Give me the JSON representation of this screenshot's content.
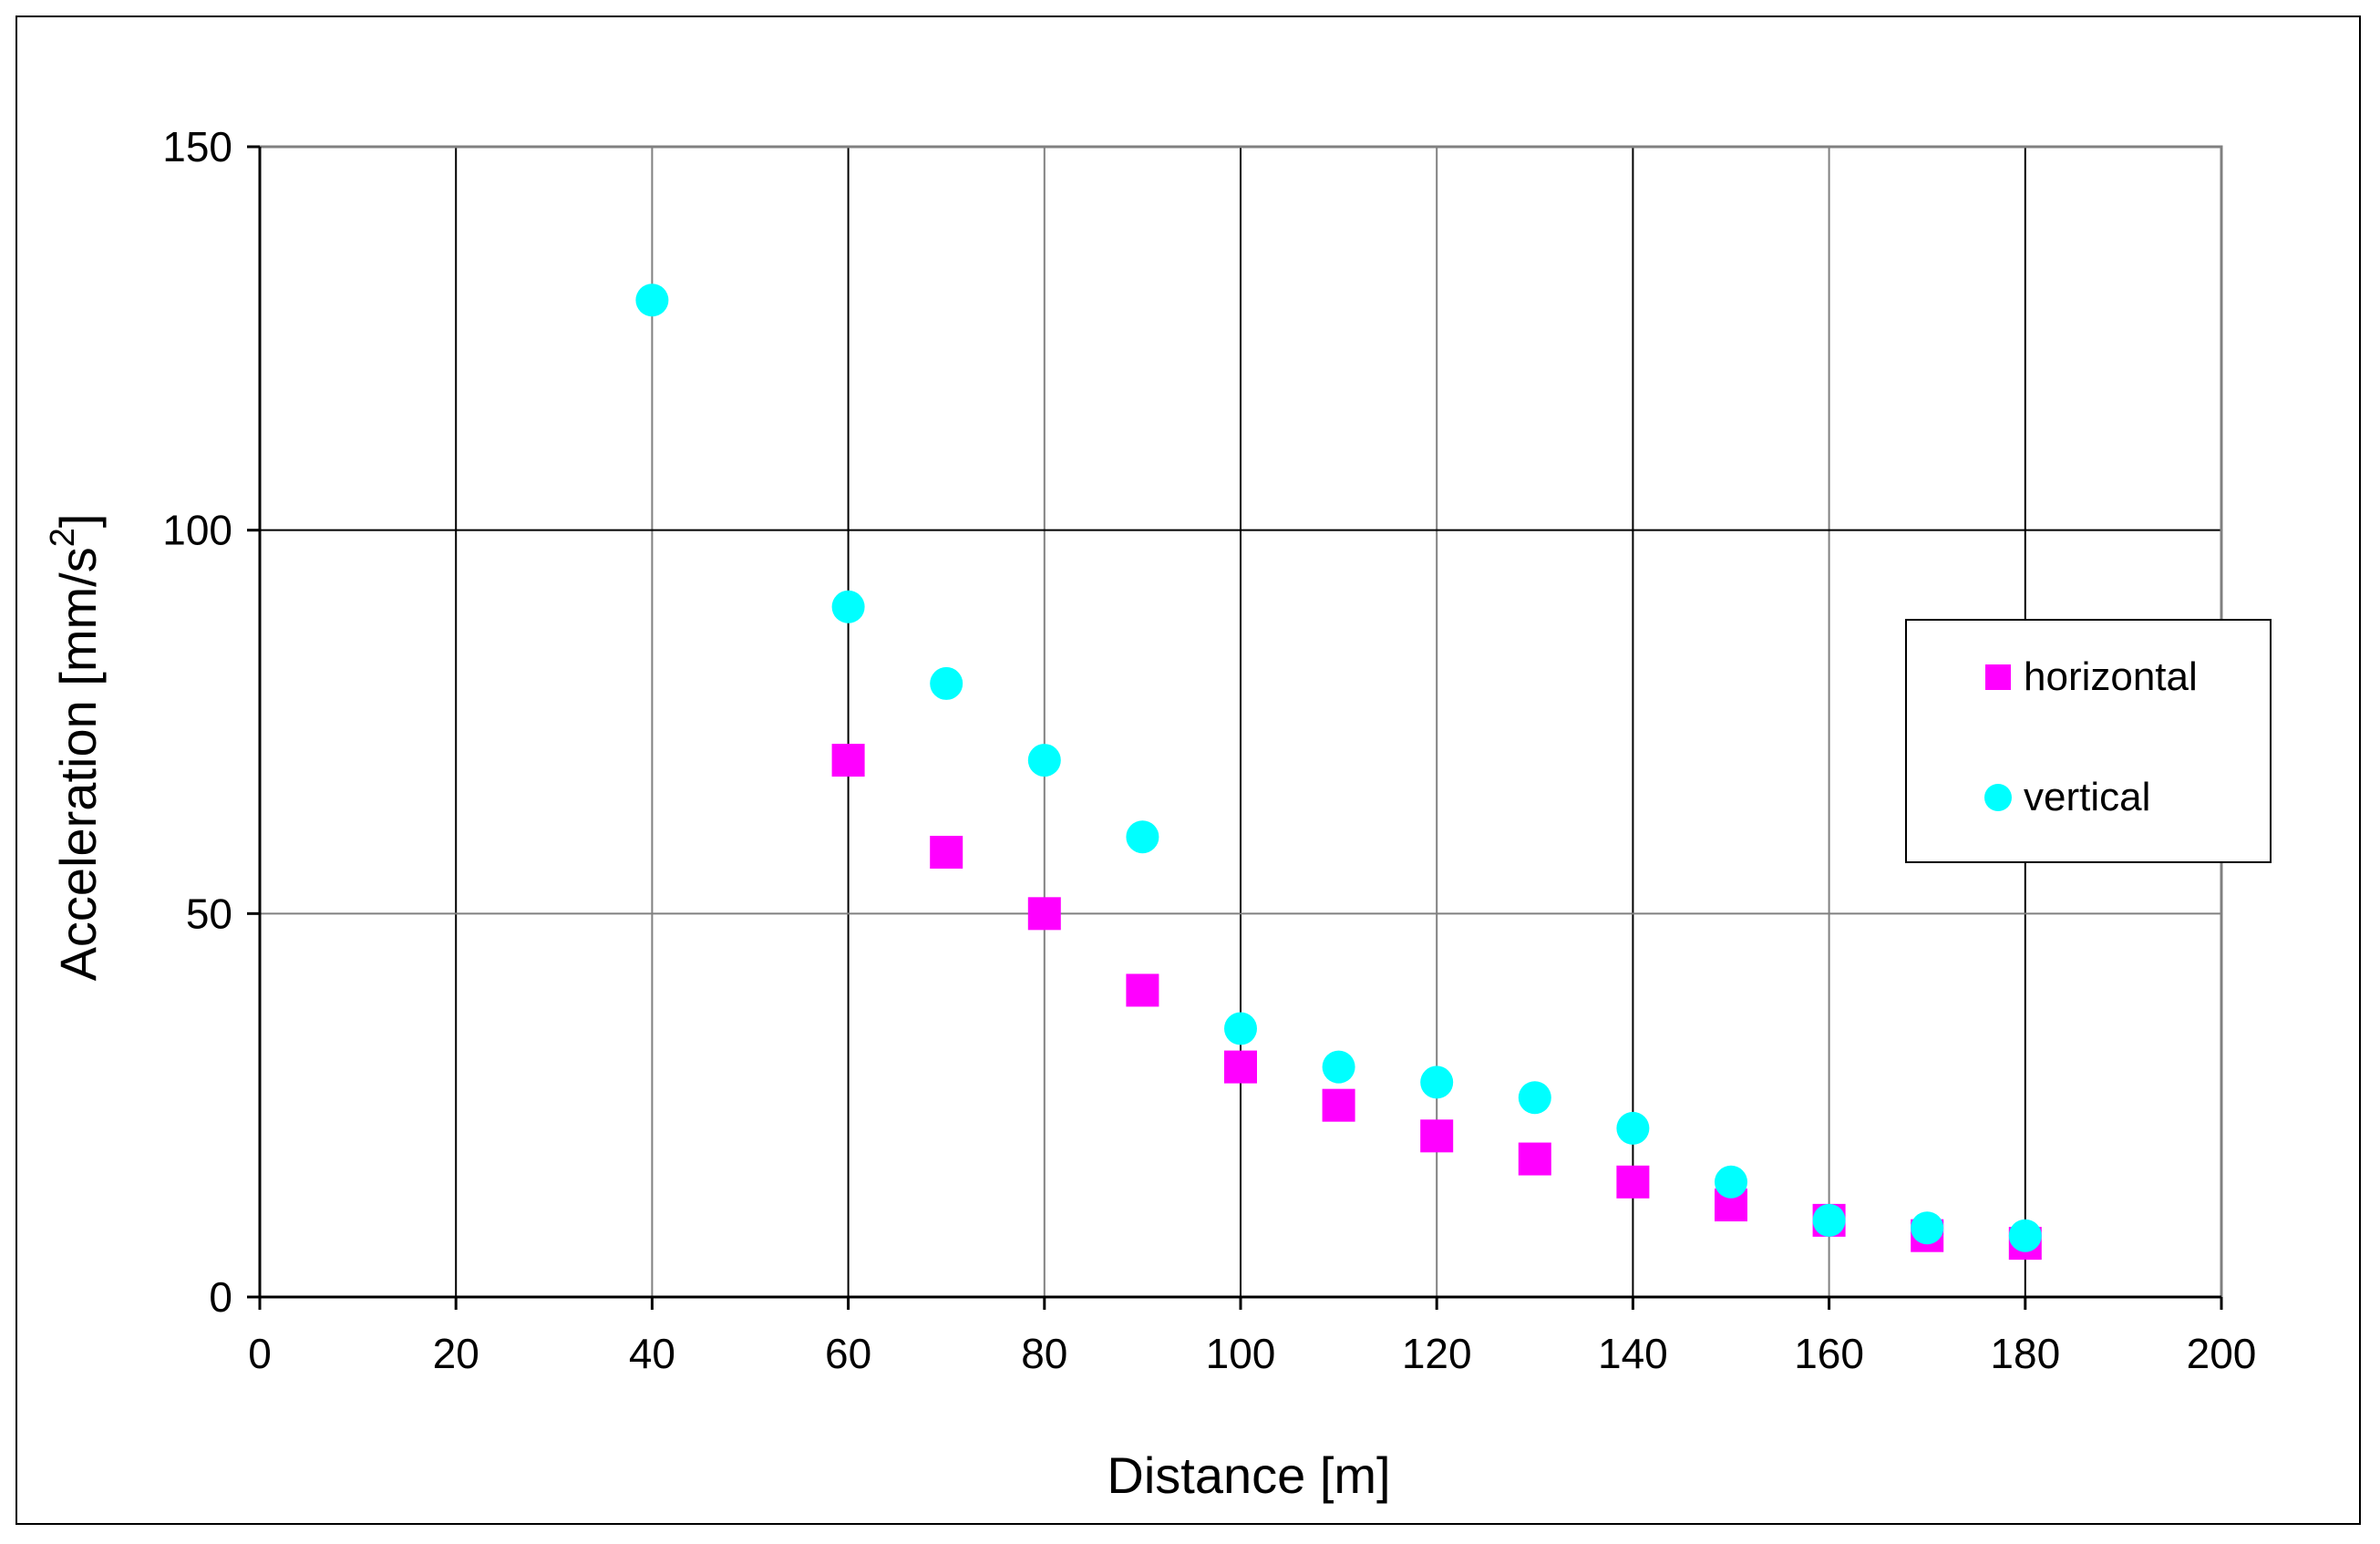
{
  "chart_data": {
    "type": "scatter",
    "title": "",
    "xlabel": "Distance [m]",
    "ylabel": "Acceleration [mm/s",
    "ylabel_superscript": "2",
    "ylabel_suffix": "]",
    "xlim": [
      0,
      200
    ],
    "ylim": [
      0,
      150
    ],
    "xticks": [
      "0",
      "20",
      "40",
      "60",
      "80",
      "100",
      "120",
      "140",
      "160",
      "180",
      "200"
    ],
    "yticks": [
      "0",
      "50",
      "100",
      "150"
    ],
    "grid": true,
    "legend_position": "right",
    "series": [
      {
        "name": "horizontal",
        "marker": "square",
        "color": "#ff00ff",
        "points": [
          {
            "x": 60,
            "y": 70
          },
          {
            "x": 70,
            "y": 58
          },
          {
            "x": 80,
            "y": 50
          },
          {
            "x": 90,
            "y": 40
          },
          {
            "x": 100,
            "y": 30
          },
          {
            "x": 110,
            "y": 25
          },
          {
            "x": 120,
            "y": 21
          },
          {
            "x": 130,
            "y": 18
          },
          {
            "x": 140,
            "y": 15
          },
          {
            "x": 150,
            "y": 12
          },
          {
            "x": 160,
            "y": 10
          },
          {
            "x": 170,
            "y": 8
          },
          {
            "x": 180,
            "y": 7
          }
        ]
      },
      {
        "name": "vertical",
        "marker": "circle",
        "color": "#00ffff",
        "points": [
          {
            "x": 40,
            "y": 130
          },
          {
            "x": 60,
            "y": 90
          },
          {
            "x": 70,
            "y": 80
          },
          {
            "x": 80,
            "y": 70
          },
          {
            "x": 90,
            "y": 60
          },
          {
            "x": 100,
            "y": 35
          },
          {
            "x": 110,
            "y": 30
          },
          {
            "x": 120,
            "y": 28
          },
          {
            "x": 130,
            "y": 26
          },
          {
            "x": 140,
            "y": 22
          },
          {
            "x": 150,
            "y": 15
          },
          {
            "x": 160,
            "y": 10
          },
          {
            "x": 170,
            "y": 9
          },
          {
            "x": 180,
            "y": 8
          }
        ]
      }
    ]
  }
}
